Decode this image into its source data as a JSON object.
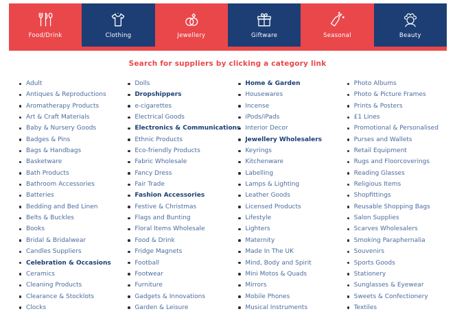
{
  "colors": {
    "red": "#ea474b",
    "navy": "#1c3e74",
    "link_blue": "#4b6b9e"
  },
  "nav": {
    "tabs": [
      {
        "label": "Food/Drink",
        "icon": "cutlery-icon",
        "color": "#ea474b"
      },
      {
        "label": "Clothing",
        "icon": "tshirt-icon",
        "color": "#1c3e74"
      },
      {
        "label": "Jewellery",
        "icon": "rings-icon",
        "color": "#ea474b"
      },
      {
        "label": "Giftware",
        "icon": "giftbox-icon",
        "color": "#1c3e74"
      },
      {
        "label": "Seasonal",
        "icon": "champagne-icon",
        "color": "#ea474b"
      },
      {
        "label": "Beauty",
        "icon": "woman-face-icon",
        "color": "#1c3e74"
      }
    ]
  },
  "heading": "Search for suppliers by clicking a category link",
  "categories": {
    "columns": [
      {
        "items": [
          {
            "label": "Adult"
          },
          {
            "label": "Antiques & Reproductions"
          },
          {
            "label": "Aromatherapy Products"
          },
          {
            "label": "Art & Craft Materials"
          },
          {
            "label": "Baby & Nursery Goods"
          },
          {
            "label": "Badges & Pins"
          },
          {
            "label": "Bags & Handbags"
          },
          {
            "label": "Basketware"
          },
          {
            "label": "Bath Products"
          },
          {
            "label": "Bathroom Accessories"
          },
          {
            "label": "Batteries"
          },
          {
            "label": "Bedding and Bed Linen"
          },
          {
            "label": "Belts & Buckles"
          },
          {
            "label": "Books"
          },
          {
            "label": "Bridal & Bridalwear"
          },
          {
            "label": "Candles Suppliers"
          },
          {
            "label": "Celebration & Occasions",
            "bold": true
          },
          {
            "label": "Ceramics"
          },
          {
            "label": "Cleaning Products"
          },
          {
            "label": "Clearance & Stocklots"
          },
          {
            "label": "Clocks"
          }
        ]
      },
      {
        "items": [
          {
            "label": "Dolls"
          },
          {
            "label": "Dropshippers",
            "bold": true
          },
          {
            "label": "e-cigarettes"
          },
          {
            "label": "Electrical Goods"
          },
          {
            "label": "Electronics & Communications",
            "bold": true
          },
          {
            "label": "Ethnic Products"
          },
          {
            "label": "Eco-friendly Products"
          },
          {
            "label": "Fabric Wholesale"
          },
          {
            "label": "Fancy Dress"
          },
          {
            "label": "Fair Trade"
          },
          {
            "label": "Fashion Accessories",
            "bold": true
          },
          {
            "label": "Festive & Christmas"
          },
          {
            "label": "Flags and Bunting"
          },
          {
            "label": "Floral Items Wholesale"
          },
          {
            "label": "Food & Drink"
          },
          {
            "label": "Fridge Magnets"
          },
          {
            "label": "Football"
          },
          {
            "label": "Footwear"
          },
          {
            "label": "Furniture"
          },
          {
            "label": "Gadgets & Innovations"
          },
          {
            "label": "Garden & Leisure"
          }
        ]
      },
      {
        "items": [
          {
            "label": "Home & Garden",
            "bold": true
          },
          {
            "label": "Housewares"
          },
          {
            "label": "Incense"
          },
          {
            "label": "iPods/iPads"
          },
          {
            "label": "Interior Decor"
          },
          {
            "label": "Jewellery Wholesalers",
            "bold": true
          },
          {
            "label": "Keyrings"
          },
          {
            "label": "Kitchenware"
          },
          {
            "label": "Labelling"
          },
          {
            "label": "Lamps & Lighting"
          },
          {
            "label": "Leather Goods"
          },
          {
            "label": "Licensed Products"
          },
          {
            "label": "Lifestyle"
          },
          {
            "label": "Lighters"
          },
          {
            "label": "Maternity"
          },
          {
            "label": "Made In The UK"
          },
          {
            "label": "Mind, Body and Spirit"
          },
          {
            "label": "Mini Motos & Quads"
          },
          {
            "label": "Mirrors"
          },
          {
            "label": "Mobile Phones"
          },
          {
            "label": "Musical Instruments"
          }
        ]
      },
      {
        "items": [
          {
            "label": "Photo Albums"
          },
          {
            "label": "Photo & Picture Frames"
          },
          {
            "label": "Prints & Posters"
          },
          {
            "label": "£1 Lines"
          },
          {
            "label": "Promotional & Personalised"
          },
          {
            "label": "Purses and Wallets"
          },
          {
            "label": "Retail Equipment"
          },
          {
            "label": "Rugs and Floorcoverings"
          },
          {
            "label": "Reading Glasses"
          },
          {
            "label": "Religious Items"
          },
          {
            "label": "Shopfittings"
          },
          {
            "label": "Reusable Shopping Bags"
          },
          {
            "label": "Salon Supplies"
          },
          {
            "label": "Scarves Wholesalers"
          },
          {
            "label": "Smoking Paraphernalia"
          },
          {
            "label": "Souvenirs"
          },
          {
            "label": "Sports Goods"
          },
          {
            "label": "Stationery"
          },
          {
            "label": "Sunglasses & Eyewear"
          },
          {
            "label": "Sweets & Confectionery"
          },
          {
            "label": "Textiles"
          }
        ]
      }
    ]
  }
}
